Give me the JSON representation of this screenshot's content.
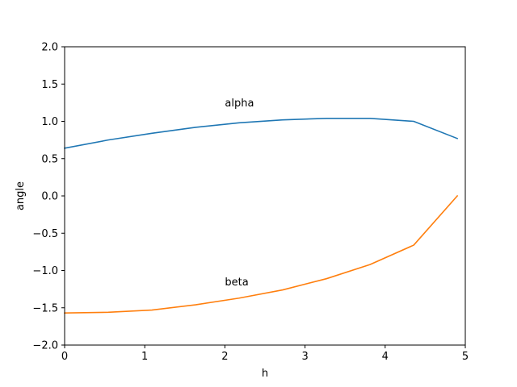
{
  "chart_data": {
    "type": "line",
    "xlabel": "h",
    "ylabel": "angle",
    "xlim": [
      0,
      5
    ],
    "ylim": [
      -2.0,
      2.0
    ],
    "xticks": [
      0,
      1,
      2,
      3,
      4,
      5
    ],
    "xtick_labels": [
      "0",
      "1",
      "2",
      "3",
      "4",
      "5"
    ],
    "yticks": [
      -2.0,
      -1.5,
      -1.0,
      -0.5,
      0.0,
      0.5,
      1.0,
      1.5,
      2.0
    ],
    "ytick_labels": [
      "−2.0",
      "−1.5",
      "−1.0",
      "−0.5",
      "0.0",
      "0.5",
      "1.0",
      "1.5",
      "2.0"
    ],
    "grid": false,
    "series": [
      {
        "color": "#1f77b4",
        "x": [
          0,
          0.544,
          1.089,
          1.633,
          2.178,
          2.722,
          3.267,
          3.811,
          4.356,
          4.9
        ],
        "y": [
          0.64,
          0.75,
          0.84,
          0.92,
          0.98,
          1.02,
          1.04,
          1.04,
          1.0,
          0.77
        ]
      },
      {
        "color": "#ff7f0e",
        "x": [
          0,
          0.544,
          1.089,
          1.633,
          2.178,
          2.722,
          3.267,
          3.811,
          4.356,
          4.9
        ],
        "y": [
          -1.57,
          -1.56,
          -1.53,
          -1.46,
          -1.37,
          -1.26,
          -1.11,
          -0.92,
          -0.66,
          0.0
        ]
      }
    ],
    "annotations": [
      {
        "text": "alpha",
        "x": 2.0,
        "y": 1.2
      },
      {
        "text": "beta",
        "x": 2.0,
        "y": -1.2
      }
    ]
  }
}
